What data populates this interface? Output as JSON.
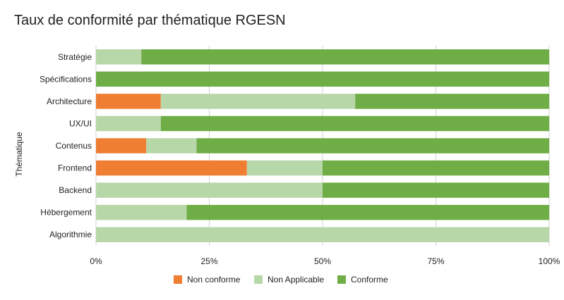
{
  "chart_data": {
    "type": "bar",
    "orientation": "horizontal",
    "stacked": "percent",
    "title": "Taux de conformité par thématique RGESN",
    "xlabel": "",
    "ylabel": "Thématique",
    "xlim": [
      0,
      100
    ],
    "x_ticks": [
      "0%",
      "25%",
      "50%",
      "75%",
      "100%"
    ],
    "grid": true,
    "legend_position": "bottom",
    "categories": [
      "Stratégie",
      "Spécifications",
      "Architecture",
      "UX/UI",
      "Contenus",
      "Frontend",
      "Backend",
      "Hébergement",
      "Algorithmie"
    ],
    "series": [
      {
        "name": "Non conforme",
        "color": "#ef7e32",
        "values": [
          0,
          0,
          14.3,
          0,
          11.1,
          33.3,
          0,
          0,
          0
        ]
      },
      {
        "name": "Non Applicable",
        "color": "#b8d7a8",
        "values": [
          10,
          0,
          42.9,
          14.3,
          11.1,
          16.7,
          50,
          20,
          100
        ]
      },
      {
        "name": "Conforme",
        "color": "#6fad46",
        "values": [
          90,
          100,
          42.8,
          85.7,
          77.8,
          50,
          50,
          80,
          0
        ]
      }
    ]
  }
}
